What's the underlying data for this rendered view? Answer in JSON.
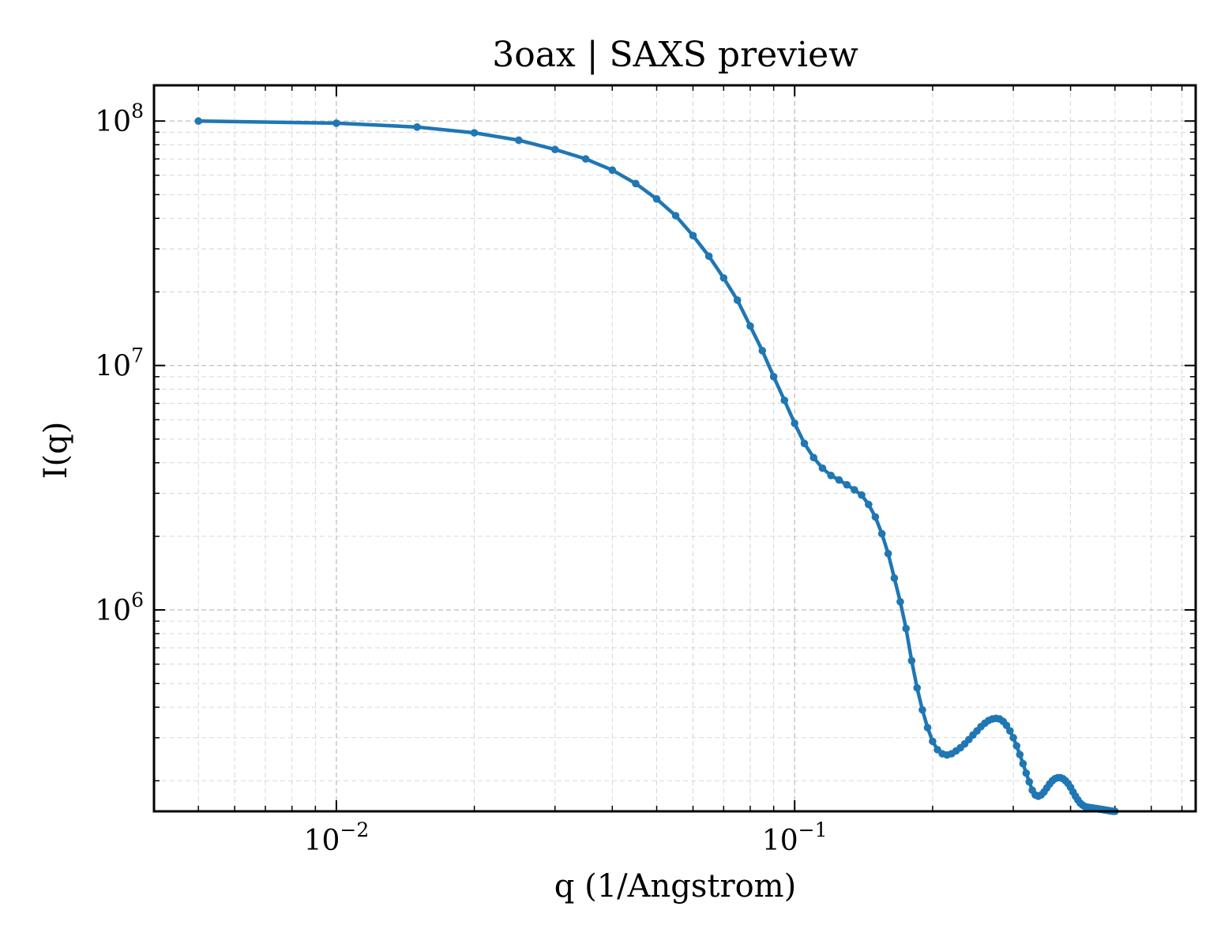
{
  "chart_data": {
    "type": "line",
    "title": "3oax | SAXS preview",
    "xlabel": "q (1/Angstrom)",
    "ylabel": "I(q)",
    "xscale": "log",
    "yscale": "log",
    "xlim": [
      0.004,
      0.75
    ],
    "ylim": [
      150000,
      140000000
    ],
    "grid": true,
    "legend": "none",
    "line_color": "#1f77b4",
    "x_ticks": [
      {
        "value": 0.01,
        "base": "10",
        "exp": "−2"
      },
      {
        "value": 0.1,
        "base": "10",
        "exp": "−1"
      }
    ],
    "y_ticks": [
      {
        "value": 1000000,
        "base": "10",
        "exp": "6"
      },
      {
        "value": 10000000,
        "base": "10",
        "exp": "7"
      },
      {
        "value": 100000000,
        "base": "10",
        "exp": "8"
      }
    ],
    "series": [
      {
        "x": [
          0.005,
          0.01,
          0.015,
          0.02,
          0.025,
          0.03,
          0.035,
          0.04,
          0.045,
          0.05,
          0.055,
          0.06,
          0.065,
          0.07,
          0.075,
          0.08,
          0.085,
          0.09,
          0.095,
          0.1,
          0.105,
          0.11,
          0.115,
          0.12,
          0.125,
          0.13,
          0.135,
          0.14,
          0.145,
          0.15,
          0.155,
          0.16,
          0.165,
          0.17,
          0.175,
          0.18,
          0.185,
          0.19,
          0.195,
          0.2,
          0.205,
          0.21,
          0.215,
          0.22,
          0.225,
          0.23,
          0.235,
          0.24,
          0.245,
          0.25,
          0.255,
          0.26,
          0.265,
          0.27,
          0.275,
          0.28,
          0.285,
          0.29,
          0.295,
          0.3,
          0.305,
          0.31,
          0.315,
          0.32,
          0.325,
          0.33,
          0.335,
          0.34,
          0.345,
          0.35,
          0.355,
          0.36,
          0.365,
          0.37,
          0.375,
          0.38,
          0.385,
          0.39,
          0.395,
          0.4,
          0.405,
          0.41,
          0.415,
          0.42,
          0.425,
          0.43,
          0.435,
          0.44,
          0.445,
          0.45,
          0.455,
          0.46,
          0.465,
          0.47,
          0.475,
          0.48,
          0.485,
          0.49,
          0.495,
          0.5
        ],
        "y": [
          100000000,
          98000000,
          94500000,
          89500000,
          83500000,
          76500000,
          70000000,
          63000000,
          55500000,
          48000000,
          41000000,
          34000000,
          28000000,
          22800000,
          18500000,
          14500000,
          11500000,
          9000000,
          7200000,
          5800000,
          4800000,
          4200000,
          3800000,
          3550000,
          3400000,
          3250000,
          3100000,
          2950000,
          2700000,
          2400000,
          2050000,
          1700000,
          1350000,
          1080000,
          840000,
          620000,
          480000,
          390000,
          330000,
          290000,
          268000,
          258000,
          255000,
          258000,
          265000,
          273000,
          283000,
          295000,
          308000,
          320000,
          333000,
          344000,
          353000,
          358000,
          360000,
          358000,
          350000,
          337000,
          320000,
          300000,
          278000,
          256000,
          235000,
          215000,
          198000,
          183000,
          175000,
          173000,
          175000,
          180000,
          187000,
          194000,
          200000,
          204000,
          206000,
          206000,
          204000,
          200000,
          195000,
          188000,
          180000,
          173000,
          167000,
          162000,
          159000,
          157000,
          156000,
          155500,
          155000,
          154500,
          154000,
          153500,
          153000,
          152500,
          152000,
          151500,
          151000,
          150500,
          150200,
          150000
        ]
      }
    ]
  }
}
